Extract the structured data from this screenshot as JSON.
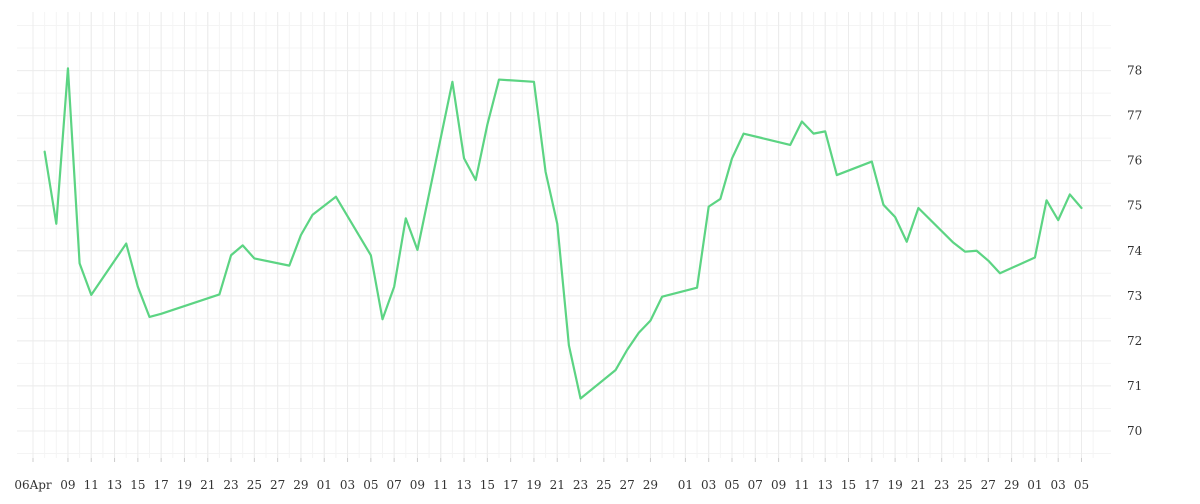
{
  "chart_data": {
    "type": "line",
    "title": "",
    "xlabel": "",
    "ylabel": "",
    "ylim": [
      69.4,
      79.3
    ],
    "y_ticks": [
      70,
      71,
      72,
      73,
      74,
      75,
      76,
      77,
      78
    ],
    "y_axis_side": "right",
    "grid": true,
    "legend": "none",
    "x_tick_labels": [
      "06Apr",
      "09",
      "11",
      "13",
      "15",
      "17",
      "19",
      "21",
      "23",
      "25",
      "27",
      "29",
      "01",
      "03",
      "05",
      "07",
      "09",
      "11",
      "13",
      "15",
      "17",
      "19",
      "21",
      "23",
      "25",
      "27",
      "29",
      "01",
      "03",
      "05",
      "07",
      "09",
      "11",
      "13",
      "15",
      "17",
      "19",
      "21",
      "23",
      "25",
      "27",
      "29",
      "01",
      "03",
      "05"
    ],
    "x_tick_dates": [
      "2023-04-06",
      "2023-04-09",
      "2023-04-11",
      "2023-04-13",
      "2023-04-15",
      "2023-04-17",
      "2023-04-19",
      "2023-04-21",
      "2023-04-23",
      "2023-04-25",
      "2023-04-27",
      "2023-04-29",
      "2023-05-01",
      "2023-05-03",
      "2023-05-05",
      "2023-05-07",
      "2023-05-09",
      "2023-05-11",
      "2023-05-13",
      "2023-05-15",
      "2023-05-17",
      "2023-05-19",
      "2023-05-21",
      "2023-05-23",
      "2023-05-25",
      "2023-05-27",
      "2023-05-29",
      "2023-06-01",
      "2023-06-03",
      "2023-06-05",
      "2023-06-07",
      "2023-06-09",
      "2023-06-11",
      "2023-06-13",
      "2023-06-15",
      "2023-06-17",
      "2023-06-19",
      "2023-06-21",
      "2023-06-23",
      "2023-06-25",
      "2023-06-27",
      "2023-06-29",
      "2023-07-01",
      "2023-07-03",
      "2023-07-05"
    ],
    "series": [
      {
        "color": "#5cd483",
        "points": [
          {
            "x": "2023-04-07",
            "y": 76.2
          },
          {
            "x": "2023-04-08",
            "y": 74.6
          },
          {
            "x": "2023-04-09",
            "y": 78.05
          },
          {
            "x": "2023-04-10",
            "y": 73.72
          },
          {
            "x": "2023-04-11",
            "y": 73.02
          },
          {
            "x": "2023-04-14",
            "y": 74.16
          },
          {
            "x": "2023-04-15",
            "y": 73.2
          },
          {
            "x": "2023-04-16",
            "y": 72.53
          },
          {
            "x": "2023-04-17",
            "y": 72.6
          },
          {
            "x": "2023-04-22",
            "y": 73.03
          },
          {
            "x": "2023-04-23",
            "y": 73.9
          },
          {
            "x": "2023-04-24",
            "y": 74.12
          },
          {
            "x": "2023-04-25",
            "y": 73.83
          },
          {
            "x": "2023-04-28",
            "y": 73.67
          },
          {
            "x": "2023-04-29",
            "y": 74.35
          },
          {
            "x": "2023-04-30",
            "y": 74.8
          },
          {
            "x": "2023-05-02",
            "y": 75.2
          },
          {
            "x": "2023-05-05",
            "y": 73.9
          },
          {
            "x": "2023-05-06",
            "y": 72.48
          },
          {
            "x": "2023-05-07",
            "y": 73.2
          },
          {
            "x": "2023-05-08",
            "y": 74.72
          },
          {
            "x": "2023-05-09",
            "y": 74.02
          },
          {
            "x": "2023-05-12",
            "y": 77.75
          },
          {
            "x": "2023-05-13",
            "y": 76.05
          },
          {
            "x": "2023-05-14",
            "y": 75.57
          },
          {
            "x": "2023-05-15",
            "y": 76.8
          },
          {
            "x": "2023-05-16",
            "y": 77.8
          },
          {
            "x": "2023-05-19",
            "y": 77.75
          },
          {
            "x": "2023-05-20",
            "y": 75.75
          },
          {
            "x": "2023-05-21",
            "y": 74.6
          },
          {
            "x": "2023-05-22",
            "y": 71.9
          },
          {
            "x": "2023-05-23",
            "y": 70.72
          },
          {
            "x": "2023-05-26",
            "y": 71.35
          },
          {
            "x": "2023-05-27",
            "y": 71.8
          },
          {
            "x": "2023-05-28",
            "y": 72.18
          },
          {
            "x": "2023-05-29",
            "y": 72.45
          },
          {
            "x": "2023-05-30",
            "y": 72.98
          },
          {
            "x": "2023-06-02",
            "y": 73.18
          },
          {
            "x": "2023-06-03",
            "y": 74.98
          },
          {
            "x": "2023-06-04",
            "y": 75.15
          },
          {
            "x": "2023-06-05",
            "y": 76.05
          },
          {
            "x": "2023-06-06",
            "y": 76.6
          },
          {
            "x": "2023-06-10",
            "y": 76.35
          },
          {
            "x": "2023-06-11",
            "y": 76.87
          },
          {
            "x": "2023-06-12",
            "y": 76.6
          },
          {
            "x": "2023-06-13",
            "y": 76.65
          },
          {
            "x": "2023-06-14",
            "y": 75.68
          },
          {
            "x": "2023-06-17",
            "y": 75.98
          },
          {
            "x": "2023-06-18",
            "y": 75.02
          },
          {
            "x": "2023-06-19",
            "y": 74.75
          },
          {
            "x": "2023-06-20",
            "y": 74.2
          },
          {
            "x": "2023-06-21",
            "y": 74.95
          },
          {
            "x": "2023-06-24",
            "y": 74.18
          },
          {
            "x": "2023-06-25",
            "y": 73.98
          },
          {
            "x": "2023-06-26",
            "y": 74.0
          },
          {
            "x": "2023-06-27",
            "y": 73.78
          },
          {
            "x": "2023-06-28",
            "y": 73.5
          },
          {
            "x": "2023-07-01",
            "y": 73.85
          },
          {
            "x": "2023-07-02",
            "y": 75.12
          },
          {
            "x": "2023-07-03",
            "y": 74.68
          },
          {
            "x": "2023-07-04",
            "y": 75.25
          },
          {
            "x": "2023-07-05",
            "y": 74.95
          }
        ]
      }
    ]
  }
}
